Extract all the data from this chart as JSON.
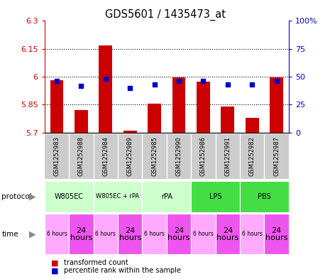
{
  "title": "GDS5601 / 1435473_at",
  "samples": [
    "GSM1252983",
    "GSM1252988",
    "GSM1252984",
    "GSM1252989",
    "GSM1252985",
    "GSM1252990",
    "GSM1252986",
    "GSM1252991",
    "GSM1252982",
    "GSM1252987"
  ],
  "transformed_counts": [
    5.98,
    5.82,
    6.17,
    5.71,
    5.855,
    5.995,
    5.975,
    5.84,
    5.78,
    5.995
  ],
  "percentile_ranks": [
    46,
    42,
    48,
    40,
    43,
    46,
    46,
    43,
    43,
    46
  ],
  "y_min": 5.7,
  "y_max": 6.3,
  "y_ticks": [
    5.7,
    5.85,
    6.0,
    6.15,
    6.3
  ],
  "y_tick_labels": [
    "5.7",
    "5.85",
    "6",
    "6.15",
    "6.3"
  ],
  "y2_ticks": [
    0,
    25,
    50,
    75,
    100
  ],
  "y2_tick_labels": [
    "0",
    "25",
    "50",
    "75",
    "100%"
  ],
  "dotted_lines": [
    5.85,
    6.0,
    6.15
  ],
  "bar_color": "#cc0000",
  "dot_color": "#0000cc",
  "proto_groups": [
    {
      "label": "W805EC",
      "start": 0,
      "end": 2,
      "color": "#ccffcc"
    },
    {
      "label": "W805EC + rPA",
      "start": 2,
      "end": 4,
      "color": "#ccffcc"
    },
    {
      "label": "rPA",
      "start": 4,
      "end": 6,
      "color": "#ccffcc"
    },
    {
      "label": "LPS",
      "start": 6,
      "end": 8,
      "color": "#44dd44"
    },
    {
      "label": "PBS",
      "start": 8,
      "end": 10,
      "color": "#44dd44"
    }
  ],
  "time_bg_small": "#ffaaff",
  "time_bg_large": "#ee55ee",
  "sample_bg": "#cccccc",
  "legend_red_label": "transformed count",
  "legend_blue_label": "percentile rank within the sample",
  "bar_width": 0.55
}
